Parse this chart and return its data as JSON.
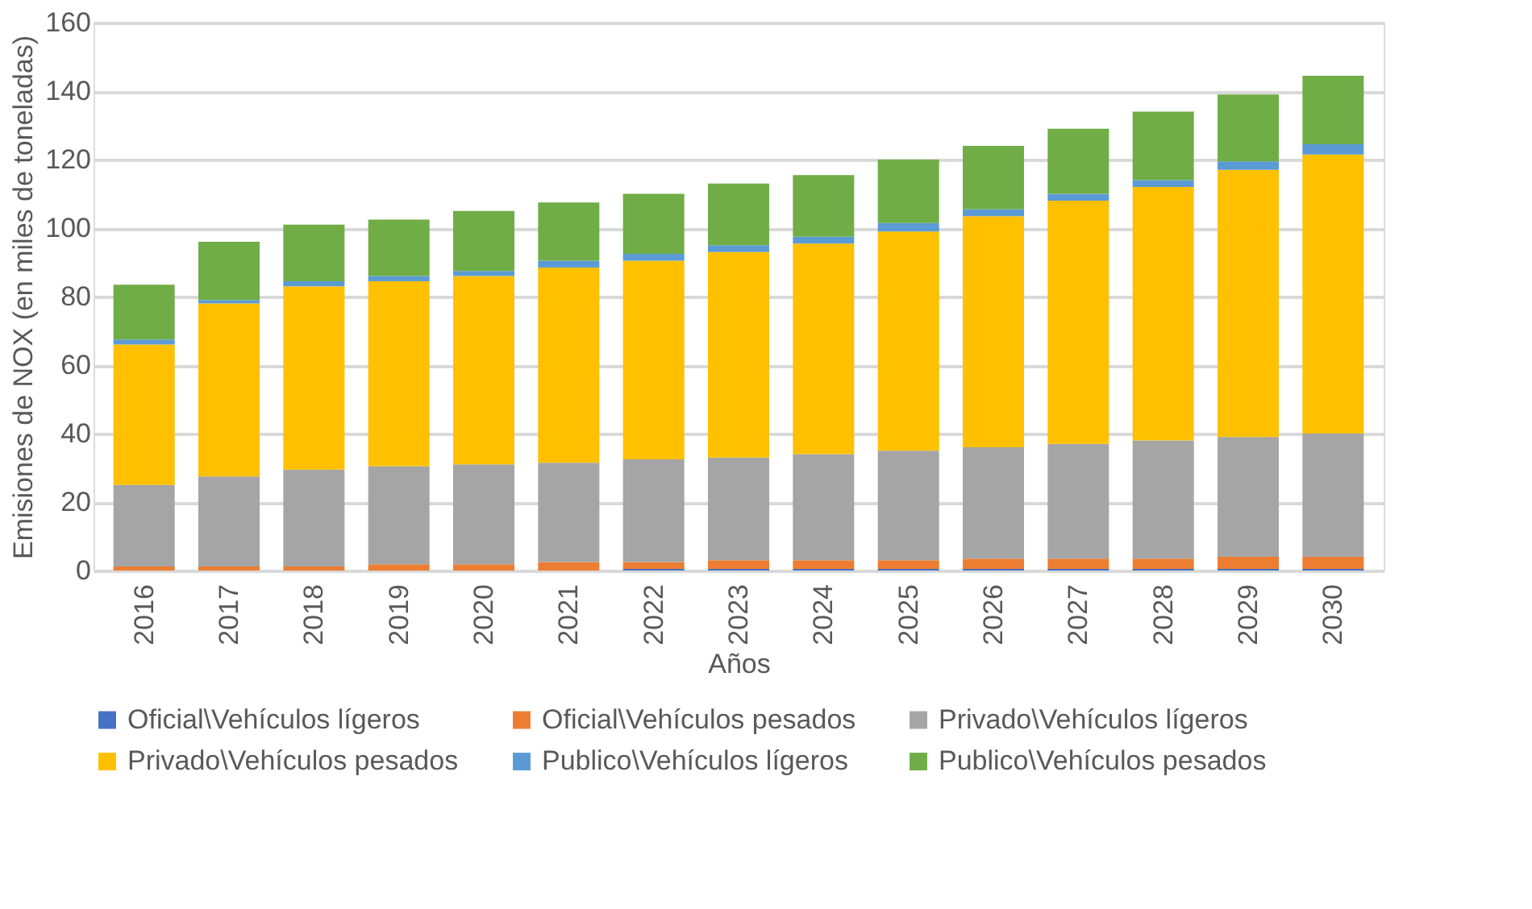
{
  "chart_data": {
    "type": "bar",
    "stacked": true,
    "xlabel": "Años",
    "ylabel": "Emisiones de NOX (en miles de toneladas)",
    "categories": [
      "2016",
      "2017",
      "2018",
      "2019",
      "2020",
      "2021",
      "2022",
      "2023",
      "2024",
      "2025",
      "2026",
      "2027",
      "2028",
      "2029",
      "2030"
    ],
    "series": [
      {
        "name": "Oficial\\Vehículos lígeros",
        "color": "#4472c4",
        "values": [
          0,
          0,
          0,
          0,
          0,
          0,
          0.5,
          0.5,
          0.5,
          0.5,
          0.5,
          0.5,
          0.5,
          0.5,
          0.5
        ]
      },
      {
        "name": "Oficial\\Vehículos pesados",
        "color": "#ed7d31",
        "values": [
          1.2,
          1.2,
          1.2,
          1.8,
          1.8,
          2.5,
          2,
          2.5,
          2.5,
          2.5,
          3,
          3,
          3,
          3.5,
          3.5
        ]
      },
      {
        "name": "Privado\\Vehículos lígeros",
        "color": "#a5a5a5",
        "values": [
          23.8,
          26.3,
          28.3,
          28.7,
          29.2,
          29,
          30,
          30,
          31,
          32,
          32.5,
          33.5,
          34.5,
          35,
          36
        ]
      },
      {
        "name": "Privado\\Vehículos pesados",
        "color": "#ffc000",
        "values": [
          41,
          50.5,
          53.5,
          54,
          55,
          57,
          58,
          60,
          61.5,
          64,
          67.5,
          71,
          74,
          78,
          81.5
        ]
      },
      {
        "name": "Publico\\Vehículos lígeros",
        "color": "#5b9bd5",
        "values": [
          1.5,
          1,
          1.5,
          1.5,
          1.5,
          2,
          2,
          2,
          2,
          2.5,
          2,
          2,
          2,
          2.5,
          3
        ]
      },
      {
        "name": "Publico\\Vehículos pesados",
        "color": "#70ad47",
        "values": [
          16,
          17,
          16.5,
          16.5,
          17.5,
          17,
          17.5,
          18,
          18,
          18.5,
          18.5,
          19,
          20,
          19.5,
          20
        ]
      }
    ],
    "ylim": [
      0,
      160
    ],
    "yticks": [
      0,
      20,
      40,
      60,
      80,
      100,
      120,
      140,
      160
    ],
    "grid": "y",
    "legend": "bottom"
  }
}
